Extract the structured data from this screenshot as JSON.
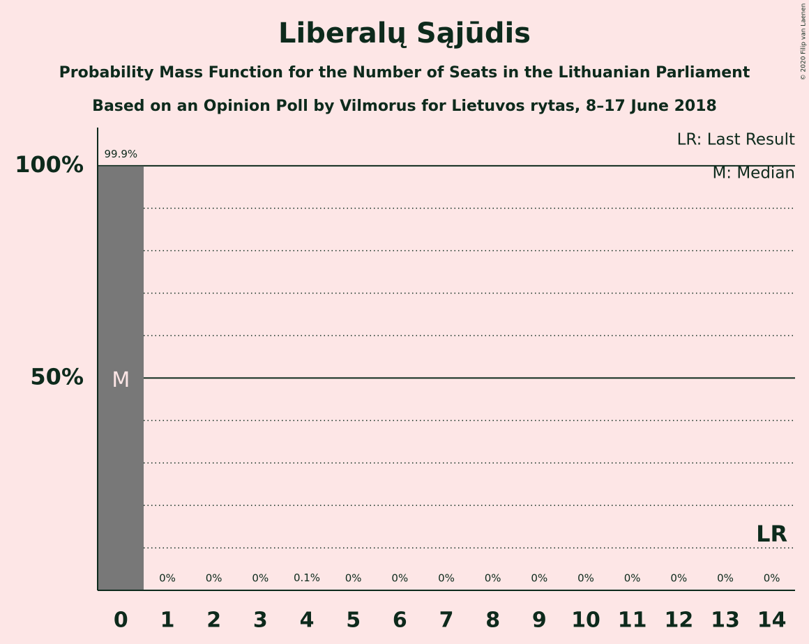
{
  "chart_data": {
    "type": "bar",
    "title": "Liberalų Sąjūdis",
    "subtitle": "Probability Mass Function for the Number of Seats in the Lithuanian Parliament",
    "subtitle2": "Based on an Opinion Poll by Vilmorus for Lietuvos rytas, 8–17 June 2018",
    "copyright": "© 2020 Filip van Laenen",
    "categories": [
      "0",
      "1",
      "2",
      "3",
      "4",
      "5",
      "6",
      "7",
      "8",
      "9",
      "10",
      "11",
      "12",
      "13",
      "14"
    ],
    "values": [
      99.9,
      0,
      0,
      0,
      0.1,
      0,
      0,
      0,
      0,
      0,
      0,
      0,
      0,
      0,
      0
    ],
    "value_labels": [
      "99.9%",
      "0%",
      "0%",
      "0%",
      "0.1%",
      "0%",
      "0%",
      "0%",
      "0%",
      "0%",
      "0%",
      "0%",
      "0%",
      "0%",
      "0%"
    ],
    "color": "#787878",
    "ylim": [
      0,
      109
    ],
    "yticks": [
      {
        "value": 50,
        "label": "50%"
      },
      {
        "value": 100,
        "label": "100%"
      }
    ],
    "minor_yticks": [
      10,
      20,
      30,
      40,
      60,
      70,
      80,
      90
    ],
    "grid": true,
    "markers": [
      {
        "label": "M",
        "category": "0"
      },
      {
        "label": "LR",
        "category": "14"
      }
    ],
    "legend": [
      "LR: Last Result",
      "M: Median"
    ]
  }
}
